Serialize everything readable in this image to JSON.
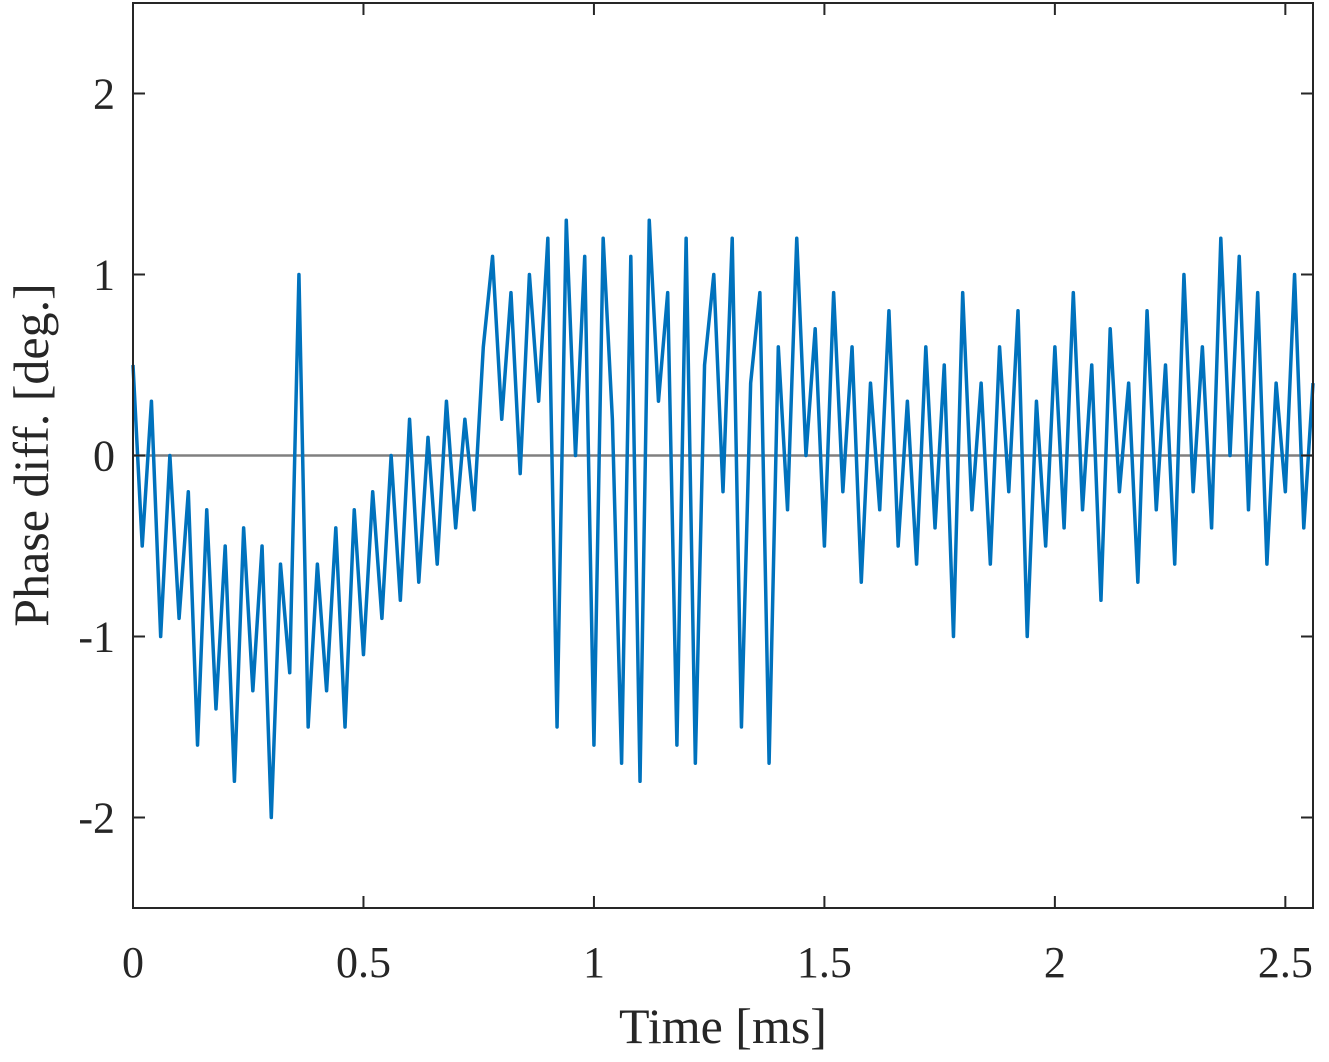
{
  "chart_data": {
    "type": "line",
    "xlabel": "Time [ms]",
    "ylabel": "Phase diff. [deg.]",
    "xlim": [
      0,
      2.56
    ],
    "ylim": [
      -2.5,
      2.5
    ],
    "xticks": [
      0,
      0.5,
      1,
      1.5,
      2,
      2.5
    ],
    "yticks": [
      -2,
      -1,
      0,
      1,
      2
    ],
    "hline": 0,
    "x": [
      0,
      0.02,
      0.04,
      0.06,
      0.08,
      0.1,
      0.12,
      0.14,
      0.16,
      0.18,
      0.2,
      0.22,
      0.24,
      0.26,
      0.28,
      0.3,
      0.32,
      0.34,
      0.36,
      0.38,
      0.4,
      0.42,
      0.44,
      0.46,
      0.48,
      0.5,
      0.52,
      0.54,
      0.56,
      0.58,
      0.6,
      0.62,
      0.64,
      0.66,
      0.68,
      0.7,
      0.72,
      0.74,
      0.76,
      0.78,
      0.8,
      0.82,
      0.84,
      0.86,
      0.88,
      0.9,
      0.92,
      0.94,
      0.96,
      0.98,
      1,
      1.02,
      1.04,
      1.06,
      1.08,
      1.1,
      1.12,
      1.14,
      1.16,
      1.18,
      1.2,
      1.22,
      1.24,
      1.26,
      1.28,
      1.3,
      1.32,
      1.34,
      1.36,
      1.38,
      1.4,
      1.42,
      1.44,
      1.46,
      1.48,
      1.5,
      1.52,
      1.54,
      1.56,
      1.58,
      1.6,
      1.62,
      1.64,
      1.66,
      1.68,
      1.7,
      1.72,
      1.74,
      1.76,
      1.78,
      1.8,
      1.82,
      1.84,
      1.86,
      1.88,
      1.9,
      1.92,
      1.94,
      1.96,
      1.98,
      2,
      2.02,
      2.04,
      2.06,
      2.08,
      2.1,
      2.12,
      2.14,
      2.16,
      2.18,
      2.2,
      2.22,
      2.24,
      2.26,
      2.28,
      2.3,
      2.32,
      2.34,
      2.36,
      2.38,
      2.4,
      2.42,
      2.44,
      2.46,
      2.48,
      2.5,
      2.52,
      2.54,
      2.56
    ],
    "series": [
      {
        "color": "#0072bd",
        "values": [
          0.5,
          -0.5,
          0.3,
          -1.0,
          0.0,
          -0.9,
          -0.2,
          -1.6,
          -0.3,
          -1.4,
          -0.5,
          -1.8,
          -0.4,
          -1.3,
          -0.5,
          -2.0,
          -0.6,
          -1.2,
          1.0,
          -1.5,
          -0.6,
          -1.3,
          -0.4,
          -1.5,
          -0.3,
          -1.1,
          -0.2,
          -0.9,
          0.0,
          -0.8,
          0.2,
          -0.7,
          0.1,
          -0.6,
          0.3,
          -0.4,
          0.2,
          -0.3,
          0.6,
          1.1,
          0.2,
          0.9,
          -0.1,
          1.0,
          0.3,
          1.2,
          -1.5,
          1.3,
          0.0,
          1.1,
          -1.6,
          1.2,
          0.2,
          -1.7,
          1.1,
          -1.8,
          1.3,
          0.3,
          0.9,
          -1.6,
          1.2,
          -1.7,
          0.5,
          1.0,
          -0.2,
          1.2,
          -1.5,
          0.4,
          0.9,
          -1.7,
          0.6,
          -0.3,
          1.2,
          0.0,
          0.7,
          -0.5,
          0.9,
          -0.2,
          0.6,
          -0.7,
          0.4,
          -0.3,
          0.8,
          -0.5,
          0.3,
          -0.6,
          0.6,
          -0.4,
          0.5,
          -1.0,
          0.9,
          -0.3,
          0.4,
          -0.6,
          0.6,
          -0.2,
          0.8,
          -1.0,
          0.3,
          -0.5,
          0.6,
          -0.4,
          0.9,
          -0.3,
          0.5,
          -0.8,
          0.7,
          -0.2,
          0.4,
          -0.7,
          0.8,
          -0.3,
          0.5,
          -0.6,
          1.0,
          -0.2,
          0.6,
          -0.4,
          1.2,
          0.0,
          1.1,
          -0.3,
          0.9,
          -0.6,
          0.4,
          -0.2,
          1.0,
          -0.4,
          0.4
        ]
      }
    ]
  }
}
